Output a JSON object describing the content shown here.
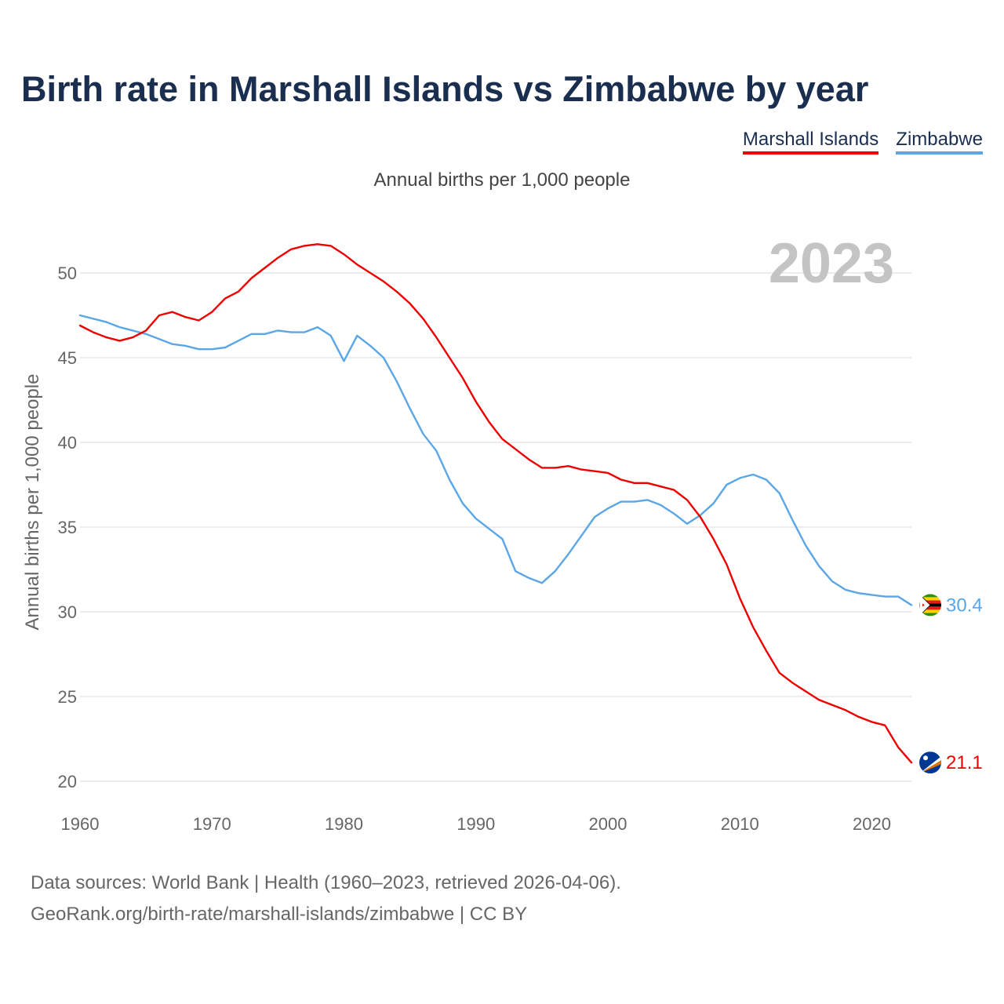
{
  "header": {
    "title": "Birth rate in Marshall Islands vs Zimbabwe by year",
    "subtitle": "Annual births per 1,000 people"
  },
  "legend": {
    "items": [
      "Marshall Islands",
      "Zimbabwe"
    ]
  },
  "footer": {
    "source_line1": "Data sources: World Bank | Health (1960–2023, retrieved 2026-04-06).",
    "source_line2": "GeoRank.org/birth-rate/marshall-islands/zimbabwe | CC BY"
  },
  "icons": {
    "zimbabwe_flag": "zimbabwe-flag-icon",
    "marshall_flag": "marshall-islands-flag-icon"
  },
  "chart_data": {
    "type": "line",
    "title": "Birth rate in Marshall Islands vs Zimbabwe by year",
    "ylabel": "Annual births per 1,000 people",
    "xlabel": "",
    "current_year_label": "2023",
    "xlim": [
      1960,
      2023
    ],
    "ylim": [
      20,
      52
    ],
    "yticks": [
      20,
      25,
      30,
      35,
      40,
      45,
      50
    ],
    "xticks": [
      1960,
      1970,
      1980,
      1990,
      2000,
      2010,
      2020
    ],
    "grid": true,
    "legend_position": "top-right",
    "x_start": 1960,
    "series": [
      {
        "name": "Marshall Islands",
        "color": "#ee0000",
        "end_label": "21.1",
        "values": [
          46.9,
          46.5,
          46.2,
          46.0,
          46.2,
          46.6,
          47.5,
          47.7,
          47.4,
          47.2,
          47.7,
          48.5,
          48.9,
          49.7,
          50.3,
          50.9,
          51.4,
          51.6,
          51.7,
          51.6,
          51.1,
          50.5,
          50.0,
          49.5,
          48.9,
          48.2,
          47.3,
          46.2,
          45.0,
          43.8,
          42.4,
          41.2,
          40.2,
          39.6,
          39.0,
          38.5,
          38.5,
          38.6,
          38.4,
          38.3,
          38.2,
          37.8,
          37.6,
          37.6,
          37.4,
          37.2,
          36.6,
          35.6,
          34.3,
          32.8,
          30.8,
          29.1,
          27.7,
          26.4,
          25.8,
          25.3,
          24.8,
          24.5,
          24.2,
          23.8,
          23.5,
          23.3,
          22.0,
          21.1
        ]
      },
      {
        "name": "Zimbabwe",
        "color": "#5aa6e6",
        "end_label": "30.4",
        "values": [
          47.5,
          47.3,
          47.1,
          46.8,
          46.6,
          46.4,
          46.1,
          45.8,
          45.7,
          45.5,
          45.5,
          45.6,
          46.0,
          46.4,
          46.4,
          46.6,
          46.5,
          46.5,
          46.8,
          46.3,
          44.8,
          46.3,
          45.7,
          45.0,
          43.6,
          42.0,
          40.5,
          39.5,
          37.8,
          36.4,
          35.5,
          34.9,
          34.3,
          32.4,
          32.0,
          31.7,
          32.4,
          33.4,
          34.5,
          35.6,
          36.1,
          36.5,
          36.5,
          36.6,
          36.3,
          35.8,
          35.2,
          35.7,
          36.4,
          37.5,
          37.9,
          38.1,
          37.8,
          37.0,
          35.4,
          33.9,
          32.7,
          31.8,
          31.3,
          31.1,
          31.0,
          30.9,
          30.9,
          30.4
        ]
      }
    ]
  }
}
